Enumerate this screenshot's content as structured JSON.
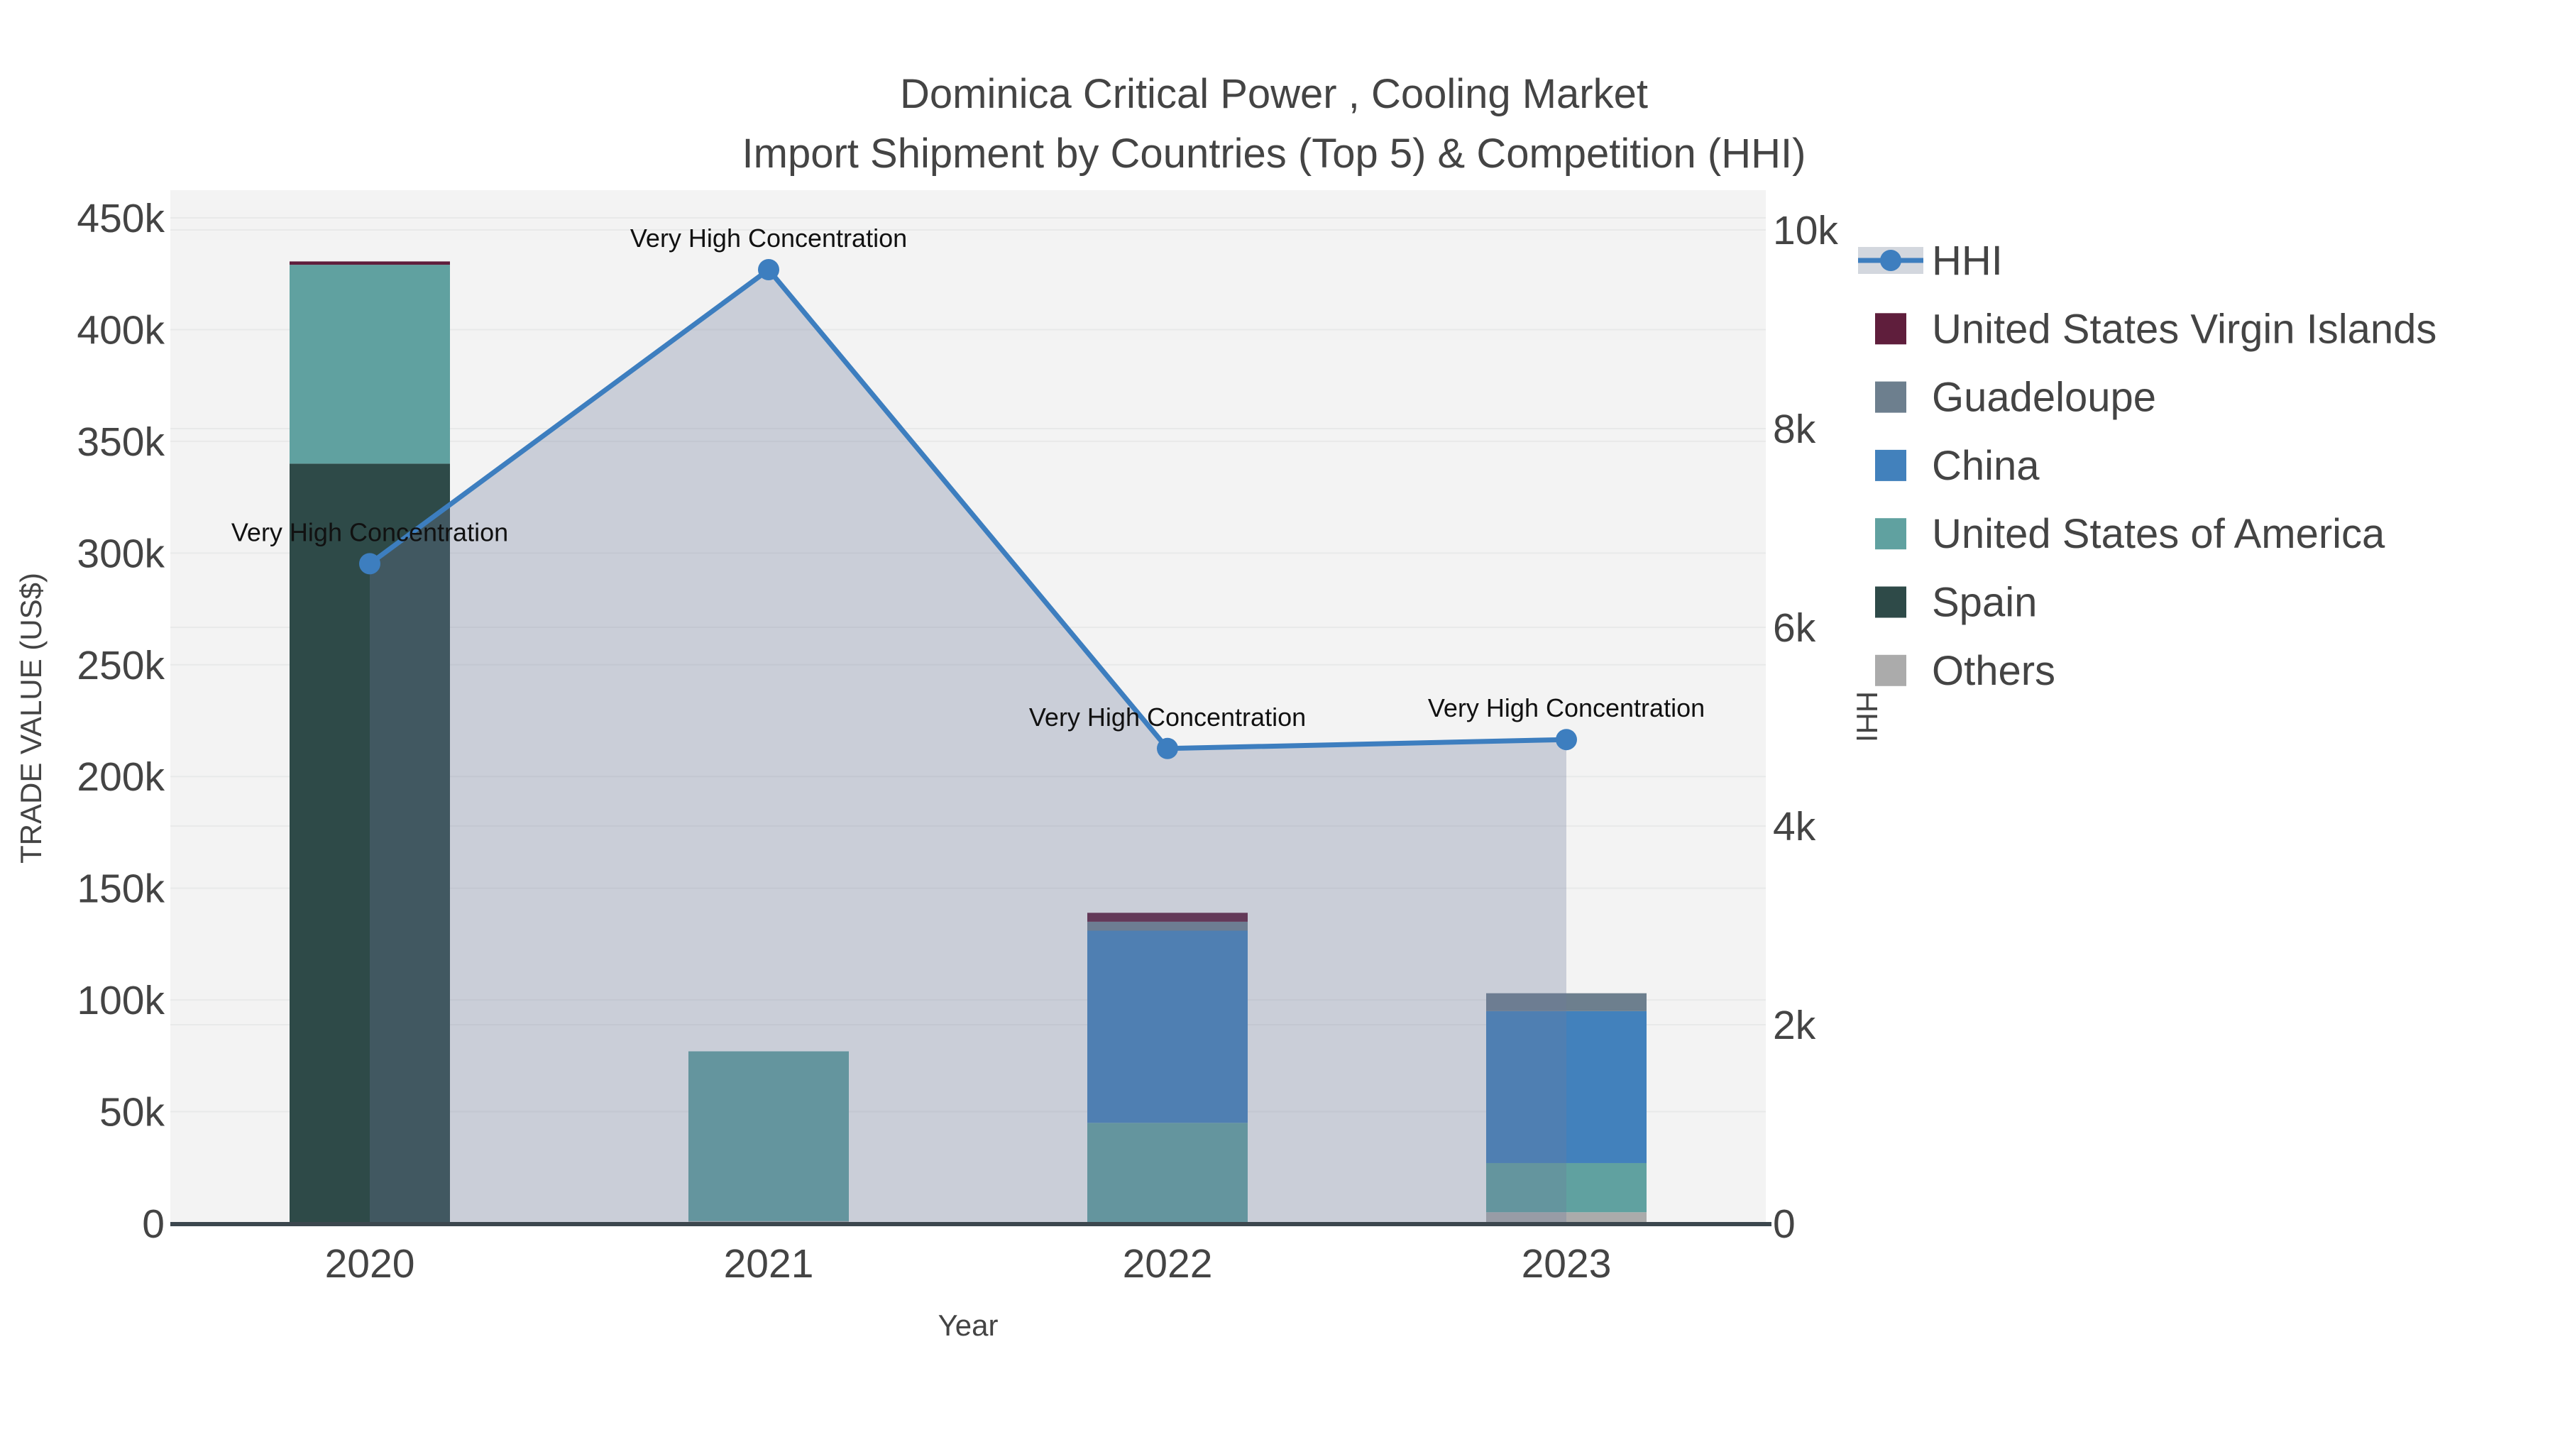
{
  "chart_data": {
    "type": "bar+line",
    "title": "Dominica Critical Power , Cooling Market",
    "subtitle": "Import Shipment by Countries (Top 5) & Competition (HHI)",
    "xlabel": "Year",
    "ylabel": "TRADE VALUE (US$)",
    "y2label": "HHI",
    "categories": [
      "2020",
      "2021",
      "2022",
      "2023"
    ],
    "ylim": [
      0,
      450000
    ],
    "y2lim": [
      0,
      10000
    ],
    "y_ticks": [
      {
        "value": 0,
        "label": "0"
      },
      {
        "value": 50000,
        "label": "50k"
      },
      {
        "value": 100000,
        "label": "100k"
      },
      {
        "value": 150000,
        "label": "150k"
      },
      {
        "value": 200000,
        "label": "200k"
      },
      {
        "value": 250000,
        "label": "250k"
      },
      {
        "value": 300000,
        "label": "300k"
      },
      {
        "value": 350000,
        "label": "350k"
      },
      {
        "value": 400000,
        "label": "400k"
      },
      {
        "value": 450000,
        "label": "450k"
      }
    ],
    "y2_ticks": [
      {
        "value": 0,
        "label": "0"
      },
      {
        "value": 2000,
        "label": "2k"
      },
      {
        "value": 4000,
        "label": "4k"
      },
      {
        "value": 6000,
        "label": "6k"
      },
      {
        "value": 8000,
        "label": "8k"
      },
      {
        "value": 10000,
        "label": "10k"
      }
    ],
    "grid": true,
    "legend_position": "right",
    "series": [
      {
        "name": "United States Virgin Islands",
        "color": "#5f1e3c",
        "values": [
          1500,
          0,
          4000,
          0
        ]
      },
      {
        "name": "Guadeloupe",
        "color": "#6d7f8e",
        "values": [
          0,
          0,
          4000,
          8000
        ]
      },
      {
        "name": "China",
        "color": "#4281bc",
        "values": [
          0,
          0,
          86000,
          68000
        ]
      },
      {
        "name": "United States of America",
        "color": "#60a1a0",
        "values": [
          89000,
          76000,
          45000,
          22000
        ]
      },
      {
        "name": "Spain",
        "color": "#2e4a48",
        "values": [
          340000,
          0,
          0,
          0
        ]
      },
      {
        "name": "Others",
        "color": "#ababab",
        "values": [
          0,
          1000,
          0,
          5000
        ]
      }
    ],
    "line_series": {
      "name": "HHI",
      "color": "#3d7ebf",
      "area_fill": "rgba(108,124,155,0.30)",
      "values": [
        6640,
        9600,
        4780,
        4870
      ]
    },
    "annotations": [
      {
        "category": "2020",
        "text": "Very High Concentration"
      },
      {
        "category": "2021",
        "text": "Very High Concentration"
      },
      {
        "category": "2022",
        "text": "Very High Concentration"
      },
      {
        "category": "2023",
        "text": "Very High Concentration"
      }
    ],
    "legend_entries": [
      "HHI",
      "United States Virgin Islands",
      "Guadeloupe",
      "China",
      "United States of America",
      "Spain",
      "Others"
    ]
  },
  "colors": {
    "text": "#444444",
    "annotation": "#111111",
    "plot_bg": "#f3f3f3",
    "grid": "#e8e9e9",
    "axis_line": "#3c474e",
    "legend_band": "#d3d7de"
  }
}
